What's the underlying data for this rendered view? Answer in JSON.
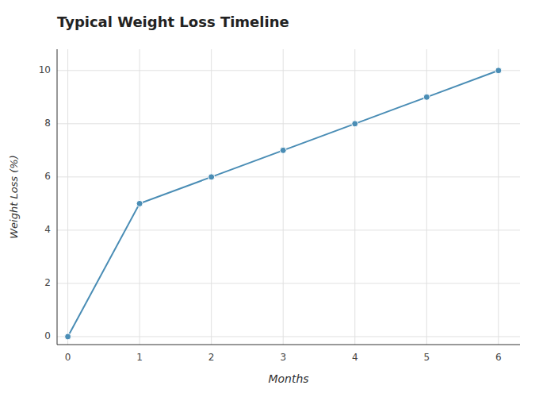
{
  "chart_data": {
    "type": "line",
    "title": "Typical Weight Loss Timeline",
    "xlabel": "Months",
    "ylabel": "Weight Loss (%)",
    "x": [
      0,
      1,
      2,
      3,
      4,
      5,
      6
    ],
    "values": [
      0,
      5,
      6,
      7,
      8,
      9,
      10
    ],
    "color": "#4a8db5",
    "marker": "circle",
    "xlim": [
      -0.15,
      6.3
    ],
    "ylim": [
      -0.3,
      10.8
    ],
    "xticks": [
      0,
      1,
      2,
      3,
      4,
      5,
      6
    ],
    "yticks": [
      0,
      2,
      4,
      6,
      8,
      10
    ],
    "grid": true
  }
}
